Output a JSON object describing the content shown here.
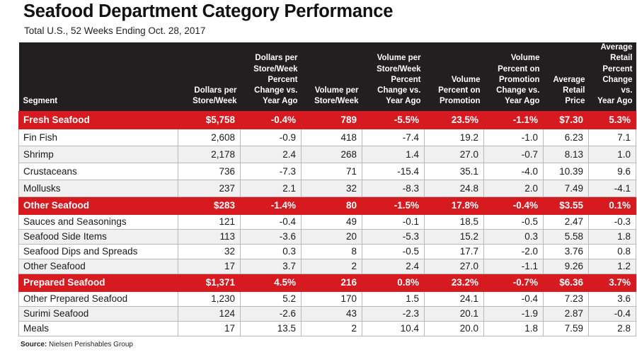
{
  "title": "Seafood Department Category Performance",
  "subtitle": "Total U.S., 52 Weeks Ending Oct. 28, 2017",
  "source": {
    "label": "Source:",
    "text": "Nielsen Perishables Group"
  },
  "colors": {
    "header_bg": "#231f20",
    "group_row": "#d71920",
    "alt_row": "#f0f0f0"
  },
  "columns": [
    [
      "Segment"
    ],
    [
      "Dollars per",
      "Store/Week"
    ],
    [
      "Dollars per",
      "Store/Week",
      "Percent",
      "Change vs.",
      "Year Ago"
    ],
    [
      "Volume per",
      "Store/Week"
    ],
    [
      "Volume per",
      "Store/Week",
      "Percent",
      "Change vs.",
      "Year Ago"
    ],
    [
      "Volume",
      "Percent on",
      "Promotion"
    ],
    [
      "Volume",
      "Percent on",
      "Promotion",
      "Change vs.",
      "Year Ago"
    ],
    [
      "Average",
      "Retail",
      "Price"
    ],
    [
      "Average",
      "Retail",
      "Percent",
      "Change vs.",
      "Year Ago"
    ]
  ],
  "groups": [
    {
      "name": "Fresh Seafood",
      "values": [
        "$5,758",
        "-0.4%",
        "789",
        "-5.5%",
        "23.5%",
        "-1.1%",
        "$7.30",
        "5.3%"
      ],
      "rows": [
        {
          "segment": "Fin Fish",
          "values": [
            "2,608",
            "-0.9",
            "418",
            "-7.4",
            "19.2",
            "-1.0",
            "6.23",
            "7.1"
          ]
        },
        {
          "segment": "Shrimp",
          "values": [
            "2,178",
            "2.4",
            "268",
            "1.4",
            "27.0",
            "-0.7",
            "8.13",
            "1.0"
          ]
        },
        {
          "segment": "Crustaceans",
          "values": [
            "736",
            "-7.3",
            "71",
            "-15.4",
            "35.1",
            "-4.0",
            "10.39",
            "9.6"
          ]
        },
        {
          "segment": "Mollusks",
          "values": [
            "237",
            "2.1",
            "32",
            "-8.3",
            "24.8",
            "2.0",
            "7.49",
            "-4.1"
          ]
        }
      ]
    },
    {
      "name": "Other Seafood",
      "values": [
        "$283",
        "-1.4%",
        "80",
        "-1.5%",
        "17.8%",
        "-0.4%",
        "$3.55",
        "0.1%"
      ],
      "rows": [
        {
          "segment": "Sauces and Seasonings",
          "values": [
            "121",
            "-0.4",
            "49",
            "-0.1",
            "18.5",
            "-0.5",
            "2.47",
            "-0.3"
          ]
        },
        {
          "segment": "Seafood Side Items",
          "values": [
            "113",
            "-3.6",
            "20",
            "-5.3",
            "15.2",
            "0.3",
            "5.58",
            "1.8"
          ]
        },
        {
          "segment": "Seafood Dips and Spreads",
          "values": [
            "32",
            "0.3",
            "8",
            "-0.5",
            "17.7",
            "-2.0",
            "3.76",
            "0.8"
          ]
        },
        {
          "segment": "Other Seafood",
          "values": [
            "17",
            "3.7",
            "2",
            "2.4",
            "27.0",
            "-1.1",
            "9.26",
            "1.2"
          ]
        }
      ]
    },
    {
      "name": "Prepared Seafood",
      "values": [
        "$1,371",
        "4.5%",
        "216",
        "0.8%",
        "23.2%",
        "-0.7%",
        "$6.36",
        "3.7%"
      ],
      "rows": [
        {
          "segment": "Other Prepared Seafood",
          "values": [
            "1,230",
            "5.2",
            "170",
            "1.5",
            "24.1",
            "-0.4",
            "7.23",
            "3.6"
          ]
        },
        {
          "segment": "Surimi Seafood",
          "values": [
            "124",
            "-2.6",
            "43",
            "-2.3",
            "20.1",
            "-1.9",
            "2.87",
            "-0.4"
          ]
        },
        {
          "segment": "Meals",
          "values": [
            "17",
            "13.5",
            "2",
            "10.4",
            "20.0",
            "1.8",
            "7.59",
            "2.8"
          ]
        }
      ]
    }
  ]
}
